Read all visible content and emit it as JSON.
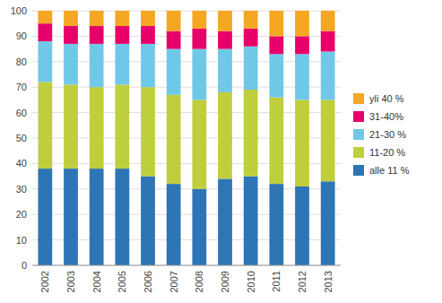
{
  "chart_data": {
    "type": "bar",
    "stacked": true,
    "grid": true,
    "legend": "right",
    "categories": [
      "2002",
      "2003",
      "2004",
      "2005",
      "2006",
      "2007",
      "2008",
      "2009",
      "2010",
      "2011",
      "2012",
      "2013"
    ],
    "series": [
      {
        "name": "alle 11 %",
        "color": "#2E75B6",
        "values": [
          38,
          38,
          38,
          38,
          35,
          32,
          30,
          34,
          35,
          32,
          31,
          33
        ]
      },
      {
        "name": "11-20 %",
        "color": "#BFCE3C",
        "values": [
          34,
          33,
          32,
          33,
          35,
          35,
          35,
          34,
          34,
          34,
          34,
          32
        ]
      },
      {
        "name": "21-30 %",
        "color": "#70C8E8",
        "values": [
          16,
          16,
          17,
          16,
          17,
          18,
          20,
          17,
          17,
          17,
          18,
          19
        ]
      },
      {
        "name": "31-40%",
        "color": "#E8006A",
        "values": [
          7,
          7,
          7,
          7,
          7,
          7,
          8,
          7,
          7,
          7,
          7,
          8
        ]
      },
      {
        "name": "yli 40 %",
        "color": "#F5A623",
        "values": [
          5,
          6,
          6,
          6,
          6,
          8,
          7,
          8,
          7,
          10,
          10,
          8
        ]
      }
    ],
    "ylim": [
      0,
      100
    ],
    "yticks": [
      0,
      10,
      20,
      30,
      40,
      50,
      60,
      70,
      80,
      90,
      100
    ]
  }
}
